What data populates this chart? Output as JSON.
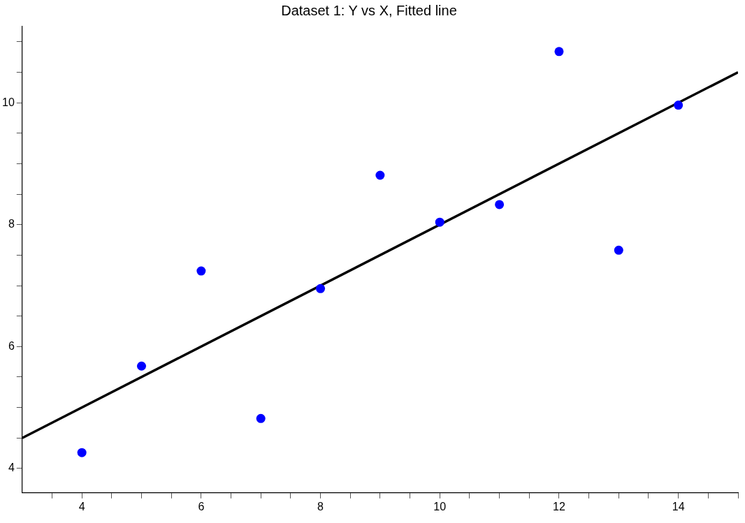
{
  "chart_data": {
    "type": "scatter",
    "title": "Dataset 1: Y vs X, Fitted line",
    "xlim": [
      3,
      15
    ],
    "ylim": [
      3.6,
      11.25
    ],
    "xticks": [
      {
        "value": 3.5,
        "label": null
      },
      4,
      {
        "value": 4.5,
        "label": null
      },
      {
        "value": 5,
        "label": null
      },
      {
        "value": 5.5,
        "label": null
      },
      6,
      {
        "value": 6.5,
        "label": null
      },
      {
        "value": 7,
        "label": null
      },
      {
        "value": 7.5,
        "label": null
      },
      8,
      {
        "value": 8.5,
        "label": null
      },
      {
        "value": 9,
        "label": null
      },
      {
        "value": 9.5,
        "label": null
      },
      10,
      {
        "value": 10.5,
        "label": null
      },
      {
        "value": 11,
        "label": null
      },
      {
        "value": 11.5,
        "label": null
      },
      12,
      {
        "value": 12.5,
        "label": null
      },
      {
        "value": 13,
        "label": null
      },
      {
        "value": 13.5,
        "label": null
      },
      14,
      {
        "value": 14.5,
        "label": null
      },
      {
        "value": 15,
        "label": null
      }
    ],
    "yticks": [
      4,
      {
        "value": 4.5,
        "label": null
      },
      {
        "value": 5,
        "label": null
      },
      {
        "value": 5.5,
        "label": null
      },
      6,
      {
        "value": 6.5,
        "label": null
      },
      {
        "value": 7,
        "label": null
      },
      {
        "value": 7.5,
        "label": null
      },
      8,
      {
        "value": 8.5,
        "label": null
      },
      {
        "value": 9,
        "label": null
      },
      {
        "value": 9.5,
        "label": null
      },
      10,
      {
        "value": 10.5,
        "label": null
      },
      {
        "value": 11,
        "label": null
      }
    ],
    "grid": false,
    "legend": false,
    "marker": "circle",
    "series": [
      {
        "type": "scatter",
        "color": "#0000ff",
        "x": [
          10,
          8,
          13,
          9,
          11,
          14,
          6,
          4,
          12,
          7,
          5
        ],
        "values": [
          8.04,
          6.95,
          7.58,
          8.81,
          8.33,
          9.96,
          7.24,
          4.26,
          10.84,
          4.82,
          5.68
        ]
      },
      {
        "type": "line",
        "color": "#000000",
        "marker": "none",
        "line_style": "solid",
        "x": [
          3,
          15
        ],
        "values": [
          4.5,
          10.5
        ]
      }
    ]
  }
}
